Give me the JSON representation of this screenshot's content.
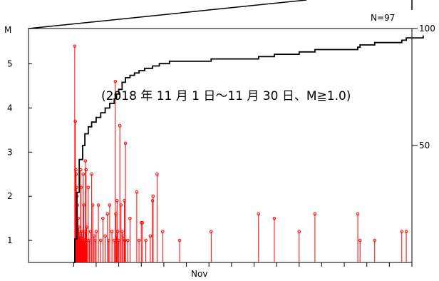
{
  "chart_data": {
    "type": "line",
    "count_label": "N=97",
    "left_axis_label": "M",
    "annotation": "(2018 年 11 月 1 日～11 月 30 日、M≧1.0)",
    "x_tick_label": "Nov",
    "x_domain": [
      -4,
      30
    ],
    "x_ticks": [
      0,
      2,
      4,
      6,
      8,
      10,
      12,
      14,
      16,
      18,
      20,
      22,
      24,
      26,
      28,
      30
    ],
    "magnitude_axis": {
      "ticks": [
        1,
        2,
        3,
        4,
        5
      ],
      "labels": [
        "1",
        "2",
        "3",
        "4",
        "5"
      ],
      "ylim": [
        0.5,
        5.8
      ]
    },
    "count_axis": {
      "ticks": [
        50,
        100
      ],
      "labels": [
        "50",
        "100"
      ],
      "ylim": [
        0,
        100
      ]
    },
    "colors": {
      "events": "#ff0000",
      "cumulative": "#000000",
      "axes": "#000000"
    },
    "events": [
      {
        "t": 0.1,
        "m": 5.4
      },
      {
        "t": 0.15,
        "m": 3.7
      },
      {
        "t": 0.2,
        "m": 2.6
      },
      {
        "t": 0.22,
        "m": 2.5
      },
      {
        "t": 0.25,
        "m": 2.2
      },
      {
        "t": 0.3,
        "m": 2.0
      },
      {
        "t": 0.35,
        "m": 1.8
      },
      {
        "t": 0.4,
        "m": 1.5
      },
      {
        "t": 0.45,
        "m": 1.3
      },
      {
        "t": 0.5,
        "m": 1.2
      },
      {
        "t": 0.55,
        "m": 1.1
      },
      {
        "t": 0.6,
        "m": 1.0
      },
      {
        "t": 0.63,
        "m": 2.6
      },
      {
        "t": 0.66,
        "m": 2.2
      },
      {
        "t": 0.7,
        "m": 1.2
      },
      {
        "t": 0.75,
        "m": 1.1
      },
      {
        "t": 0.8,
        "m": 1.0
      },
      {
        "t": 0.85,
        "m": 2.5
      },
      {
        "t": 0.9,
        "m": 1.8
      },
      {
        "t": 0.95,
        "m": 1.0
      },
      {
        "t": 1.0,
        "m": 1.2
      },
      {
        "t": 1.05,
        "m": 2.8
      },
      {
        "t": 1.1,
        "m": 2.6
      },
      {
        "t": 1.15,
        "m": 1.3
      },
      {
        "t": 1.2,
        "m": 1.0
      },
      {
        "t": 1.3,
        "m": 2.2
      },
      {
        "t": 1.4,
        "m": 1.0
      },
      {
        "t": 1.5,
        "m": 1.2
      },
      {
        "t": 1.6,
        "m": 2.5
      },
      {
        "t": 1.7,
        "m": 1.8
      },
      {
        "t": 1.8,
        "m": 1.1
      },
      {
        "t": 1.9,
        "m": 1.0
      },
      {
        "t": 2.0,
        "m": 1.2
      },
      {
        "t": 2.2,
        "m": 1.8
      },
      {
        "t": 2.4,
        "m": 1.0
      },
      {
        "t": 2.6,
        "m": 1.5
      },
      {
        "t": 2.8,
        "m": 1.1
      },
      {
        "t": 3.0,
        "m": 1.6
      },
      {
        "t": 3.1,
        "m": 1.0
      },
      {
        "t": 3.2,
        "m": 1.8
      },
      {
        "t": 3.4,
        "m": 1.2
      },
      {
        "t": 3.6,
        "m": 1.0
      },
      {
        "t": 3.7,
        "m": 4.6
      },
      {
        "t": 3.75,
        "m": 1.6
      },
      {
        "t": 3.8,
        "m": 1.1
      },
      {
        "t": 3.85,
        "m": 1.9
      },
      {
        "t": 3.9,
        "m": 1.2
      },
      {
        "t": 4.0,
        "m": 1.0
      },
      {
        "t": 4.1,
        "m": 3.6
      },
      {
        "t": 4.2,
        "m": 1.8
      },
      {
        "t": 4.3,
        "m": 1.2
      },
      {
        "t": 4.4,
        "m": 1.1
      },
      {
        "t": 4.5,
        "m": 1.9
      },
      {
        "t": 4.55,
        "m": 1.0
      },
      {
        "t": 4.6,
        "m": 3.2
      },
      {
        "t": 4.8,
        "m": 1.0
      },
      {
        "t": 5.0,
        "m": 1.5
      },
      {
        "t": 5.6,
        "m": 2.1
      },
      {
        "t": 5.8,
        "m": 1.0
      },
      {
        "t": 6.0,
        "m": 1.4
      },
      {
        "t": 6.1,
        "m": 1.4
      },
      {
        "t": 6.4,
        "m": 1.0
      },
      {
        "t": 6.8,
        "m": 1.1
      },
      {
        "t": 7.0,
        "m": 1.9
      },
      {
        "t": 7.05,
        "m": 2.0
      },
      {
        "t": 7.4,
        "m": 2.5
      },
      {
        "t": 7.9,
        "m": 1.2
      },
      {
        "t": 9.4,
        "m": 1.0
      },
      {
        "t": 12.2,
        "m": 1.2
      },
      {
        "t": 16.4,
        "m": 1.6
      },
      {
        "t": 17.8,
        "m": 1.5
      },
      {
        "t": 20.0,
        "m": 1.2
      },
      {
        "t": 21.4,
        "m": 1.6
      },
      {
        "t": 25.2,
        "m": 1.6
      },
      {
        "t": 25.4,
        "m": 1.0
      },
      {
        "t": 26.7,
        "m": 1.0
      },
      {
        "t": 29.1,
        "m": 1.2
      },
      {
        "t": 29.5,
        "m": 1.2
      }
    ],
    "cumulative": [
      {
        "t": 0.0,
        "n": 0
      },
      {
        "t": 0.1,
        "n": 10
      },
      {
        "t": 0.3,
        "n": 30
      },
      {
        "t": 0.5,
        "n": 44
      },
      {
        "t": 0.8,
        "n": 50
      },
      {
        "t": 1.0,
        "n": 55
      },
      {
        "t": 1.3,
        "n": 58
      },
      {
        "t": 1.6,
        "n": 60
      },
      {
        "t": 2.0,
        "n": 62
      },
      {
        "t": 2.4,
        "n": 64
      },
      {
        "t": 2.8,
        "n": 66
      },
      {
        "t": 3.2,
        "n": 68
      },
      {
        "t": 3.6,
        "n": 70
      },
      {
        "t": 3.8,
        "n": 72
      },
      {
        "t": 4.0,
        "n": 74
      },
      {
        "t": 4.3,
        "n": 77
      },
      {
        "t": 4.6,
        "n": 79
      },
      {
        "t": 5.0,
        "n": 80
      },
      {
        "t": 5.4,
        "n": 81
      },
      {
        "t": 5.8,
        "n": 82
      },
      {
        "t": 6.3,
        "n": 83
      },
      {
        "t": 7.0,
        "n": 84
      },
      {
        "t": 7.6,
        "n": 85
      },
      {
        "t": 8.5,
        "n": 86
      },
      {
        "t": 10.5,
        "n": 86
      },
      {
        "t": 12.2,
        "n": 87
      },
      {
        "t": 16.4,
        "n": 88
      },
      {
        "t": 17.8,
        "n": 89
      },
      {
        "t": 20.0,
        "n": 90
      },
      {
        "t": 21.4,
        "n": 91
      },
      {
        "t": 25.2,
        "n": 92
      },
      {
        "t": 25.4,
        "n": 93
      },
      {
        "t": 26.7,
        "n": 94
      },
      {
        "t": 29.1,
        "n": 95
      },
      {
        "t": 29.5,
        "n": 96
      },
      {
        "t": 31.0,
        "n": 97
      }
    ]
  }
}
